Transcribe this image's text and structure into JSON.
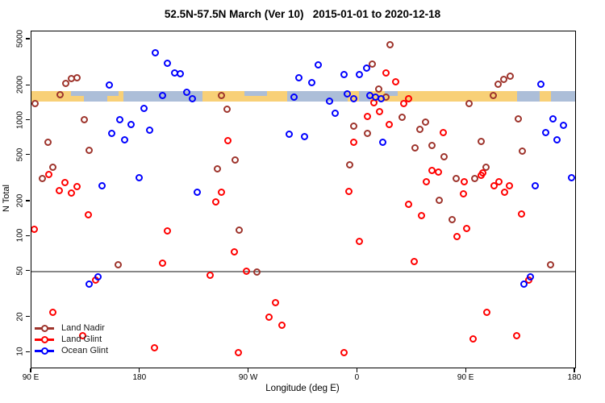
{
  "title": "52.5N-57.5N March (Ver 10)   2015-01-01 to 2020-12-18",
  "chart_data": {
    "type": "scatter",
    "title": "52.5N-57.5N March (Ver 10)   2015-01-01 to 2020-12-18",
    "xlabel": "Longitude (deg E)",
    "ylabel": "N Total",
    "x_axis": {
      "range_deg": [
        0,
        450
      ],
      "ticks_deg": [
        0,
        90,
        180,
        270,
        360,
        450
      ],
      "tick_labels": [
        "90 E",
        "180",
        "90 W",
        "0",
        "90 E",
        "180"
      ]
    },
    "y_axis": {
      "scale": "log",
      "ticks": [
        10,
        20,
        50,
        100,
        200,
        500,
        1000,
        2000,
        5000
      ],
      "range": [
        8.5,
        6000
      ]
    },
    "reference_line_y": 50,
    "map_band": {
      "value_range": [
        1460,
        1800
      ],
      "land_color": "#F8D077",
      "ocean_color": "#ACBED8",
      "land_segments_deg": [
        [
          0,
          43.4
        ],
        [
          72.1,
          76.1
        ],
        [
          141.5,
          211.6
        ],
        [
          261.7,
          271.1
        ],
        [
          280.4,
          401.9
        ],
        [
          420.6,
          430
        ]
      ],
      "ocean_segments_deg": [
        [
          43.4,
          72.1
        ],
        [
          76.1,
          141.5
        ],
        [
          211.6,
          261.7
        ],
        [
          271.1,
          280.4
        ],
        [
          401.9,
          420.6
        ],
        [
          430,
          450
        ]
      ],
      "patches": [
        {
          "from": 33,
          "to": 43.4,
          "type": "ocean",
          "half": "top"
        },
        {
          "from": 62.8,
          "to": 72.1,
          "type": "land",
          "half": "bottom"
        },
        {
          "from": 176.3,
          "to": 195,
          "type": "ocean",
          "half": "top"
        },
        {
          "from": 292.5,
          "to": 303,
          "type": "ocean",
          "half": "top"
        }
      ]
    },
    "series": [
      {
        "name": "Land Nadir",
        "color": "#9E342C",
        "points": [
          [
            28.5,
            2100
          ],
          [
            32.9,
            2290
          ],
          [
            37.9,
            2340
          ],
          [
            24,
            1660
          ],
          [
            2.7,
            1400
          ],
          [
            157.1,
            1650
          ],
          [
            162,
            1260
          ],
          [
            43.6,
            1020
          ],
          [
            13.4,
            647
          ],
          [
            47.6,
            551
          ],
          [
            168.4,
            453
          ],
          [
            153.6,
            384
          ],
          [
            17.8,
            394
          ],
          [
            8.9,
            318
          ],
          [
            171.8,
            114
          ],
          [
            296.6,
            4540
          ],
          [
            282.2,
            3090
          ],
          [
            287.7,
            1880
          ],
          [
            293.5,
            1580
          ],
          [
            306.9,
            1060
          ],
          [
            326.3,
            976
          ],
          [
            266.8,
            901
          ],
          [
            278.4,
            780
          ],
          [
            321.8,
            841
          ],
          [
            317.3,
            578
          ],
          [
            331.4,
            604
          ],
          [
            341.8,
            488
          ],
          [
            371.9,
            662
          ],
          [
            402.6,
            1040
          ],
          [
            390.8,
            2250
          ],
          [
            396.4,
            2420
          ],
          [
            386.4,
            2070
          ],
          [
            381.9,
            1650
          ],
          [
            362.3,
            1400
          ],
          [
            406.4,
            543
          ],
          [
            263.2,
            416
          ],
          [
            376.3,
            394
          ],
          [
            351.8,
            318
          ],
          [
            367,
            318
          ],
          [
            337.4,
            206
          ],
          [
            348.5,
            139
          ],
          [
            186.9,
            49
          ],
          [
            429.8,
            57
          ],
          [
            71.6,
            57
          ]
        ]
      },
      {
        "name": "Land Glint",
        "color": "#FF0000",
        "points": [
          [
            293.3,
            2560
          ],
          [
            301.3,
            2160
          ],
          [
            283.3,
            1430
          ],
          [
            311.8,
            1530
          ],
          [
            308.4,
            1400
          ],
          [
            287.8,
            1200
          ],
          [
            278.4,
            1090
          ],
          [
            296.2,
            916
          ],
          [
            341.1,
            789
          ],
          [
            266.8,
            644
          ],
          [
            162.4,
            672
          ],
          [
            14.5,
            343
          ],
          [
            27.6,
            290
          ],
          [
            22.9,
            250
          ],
          [
            37.4,
            271
          ],
          [
            32.9,
            237
          ],
          [
            157.1,
            239
          ],
          [
            152.7,
            197
          ],
          [
            47.4,
            153
          ],
          [
            2.2,
            116
          ],
          [
            112.6,
            111
          ],
          [
            331.4,
            369
          ],
          [
            337,
            358
          ],
          [
            326.9,
            298
          ],
          [
            358.1,
            298
          ],
          [
            372.3,
            339
          ],
          [
            373.7,
            351
          ],
          [
            382.6,
            274
          ],
          [
            387.1,
            294
          ],
          [
            391.5,
            239
          ],
          [
            395.9,
            274
          ],
          [
            262.8,
            246
          ],
          [
            357.4,
            234
          ],
          [
            311.8,
            188
          ],
          [
            322.9,
            151
          ],
          [
            360.3,
            117
          ],
          [
            352.3,
            99
          ],
          [
            405.7,
            157
          ],
          [
            271.7,
            90
          ],
          [
            167.6,
            73
          ],
          [
            108.6,
            59
          ],
          [
            316.7,
            61
          ],
          [
            148,
            46
          ],
          [
            177.6,
            50
          ],
          [
            52.9,
            42
          ],
          [
            411.5,
            42
          ],
          [
            17.8,
            22
          ],
          [
            376.7,
            22
          ],
          [
            202.1,
            27
          ],
          [
            196.5,
            20
          ],
          [
            207.4,
            17
          ],
          [
            42.3,
            14
          ],
          [
            401.9,
            14
          ],
          [
            365.7,
            13
          ],
          [
            101.9,
            11
          ],
          [
            258.9,
            10
          ],
          [
            171.4,
            10
          ]
        ]
      },
      {
        "name": "Ocean Glint",
        "color": "#0000FF",
        "points": [
          [
            102.2,
            3830
          ],
          [
            112.8,
            3130
          ],
          [
            118.8,
            2560
          ],
          [
            123.5,
            2530
          ],
          [
            64.1,
            2030
          ],
          [
            221,
            2340
          ],
          [
            108.6,
            1650
          ],
          [
            128.4,
            1740
          ],
          [
            133.5,
            1550
          ],
          [
            93,
            1280
          ],
          [
            217.2,
            1600
          ],
          [
            72.8,
            1020
          ],
          [
            82.6,
            916
          ],
          [
            66.6,
            780
          ],
          [
            97.5,
            819
          ],
          [
            77.2,
            679
          ],
          [
            213.2,
            756
          ],
          [
            226.1,
            728
          ],
          [
            58.3,
            274
          ],
          [
            89,
            322
          ],
          [
            137.1,
            239
          ],
          [
            251.4,
            1150
          ],
          [
            290.6,
            644
          ],
          [
            232.1,
            2130
          ],
          [
            237.2,
            3010
          ],
          [
            277.7,
            2810
          ],
          [
            258.4,
            2500
          ],
          [
            271.7,
            2490
          ],
          [
            261.2,
            1700
          ],
          [
            266.8,
            1530
          ],
          [
            246.8,
            1480
          ],
          [
            280.3,
            1640
          ],
          [
            285,
            1600
          ],
          [
            289.1,
            1550
          ],
          [
            421.3,
            2060
          ],
          [
            431.5,
            1040
          ],
          [
            440.4,
            910
          ],
          [
            425.3,
            790
          ],
          [
            435.3,
            680
          ],
          [
            416.8,
            274
          ],
          [
            447.1,
            320
          ],
          [
            55.2,
            45
          ],
          [
            47.9,
            39
          ],
          [
            413,
            45
          ],
          [
            407.4,
            39
          ]
        ]
      }
    ]
  },
  "legend": {
    "items": [
      {
        "label": "Land Nadir",
        "color": "#9E342C"
      },
      {
        "label": "Land Glint",
        "color": "#FF0000"
      },
      {
        "label": "Ocean Glint",
        "color": "#0000FF"
      }
    ]
  }
}
